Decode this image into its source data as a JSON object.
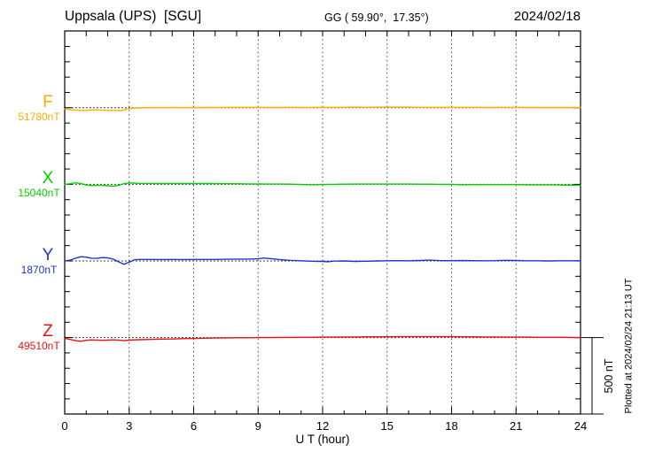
{
  "header": {
    "station": "Uppsala (UPS)  [SGU]",
    "coordinates": "GG ( 59.90°,  17.35°)",
    "date": "2024/02/18"
  },
  "xaxis": {
    "label": "U T (hour)"
  },
  "scale_bar": {
    "label": "500 nT",
    "span_nT": 500
  },
  "plotted_note": "Plotted at 2024/02/24 21:13 UT",
  "chart_data": {
    "type": "line",
    "title": "Uppsala (UPS) [SGU] magnetogram 2024/02/18",
    "xlabel": "U T (hour)",
    "x_range": [
      0,
      24
    ],
    "x_major_ticks": [
      0,
      3,
      6,
      9,
      12,
      15,
      18,
      21,
      24
    ],
    "x_minor_tick_step_hours": 1,
    "row_span_nT": 500,
    "y_minor_tick_nT": 100,
    "grid": "dotted vertical lines at 3-hour intervals; dotted horizontal baseline per component",
    "legend_position": "left margin (component letter and baseline value)",
    "series": [
      {
        "name": "F",
        "baseline_nT": 51780,
        "baseline_label": "51780nT",
        "color": "#FFAD00",
        "points_hour_offset_nT": [
          [
            0,
            -8
          ],
          [
            0.3,
            -14
          ],
          [
            0.6,
            -16
          ],
          [
            0.9,
            -18
          ],
          [
            1.2,
            -15
          ],
          [
            1.5,
            -14
          ],
          [
            1.8,
            -16
          ],
          [
            2.1,
            -18
          ],
          [
            2.4,
            -16
          ],
          [
            2.6,
            -20
          ],
          [
            2.8,
            -12
          ],
          [
            3,
            -5
          ],
          [
            3.3,
            -2
          ],
          [
            3.6,
            0
          ],
          [
            4,
            1
          ],
          [
            4.5,
            1
          ],
          [
            5,
            2
          ],
          [
            5.5,
            1
          ],
          [
            6,
            2
          ],
          [
            6.5,
            2
          ],
          [
            7,
            2
          ],
          [
            7.5,
            3
          ],
          [
            8,
            3
          ],
          [
            8.5,
            3
          ],
          [
            9,
            3
          ],
          [
            9.5,
            2
          ],
          [
            10,
            2
          ],
          [
            10.5,
            3
          ],
          [
            11,
            2
          ],
          [
            11.5,
            3
          ],
          [
            12,
            3
          ],
          [
            12.5,
            3
          ],
          [
            13,
            3
          ],
          [
            13.5,
            4
          ],
          [
            14,
            3
          ],
          [
            14.5,
            4
          ],
          [
            15,
            4
          ],
          [
            15.5,
            4
          ],
          [
            16,
            4
          ],
          [
            16.5,
            3
          ],
          [
            17,
            3
          ],
          [
            17.5,
            3
          ],
          [
            18,
            3
          ],
          [
            18.5,
            3
          ],
          [
            19,
            3
          ],
          [
            19.5,
            2
          ],
          [
            20,
            2
          ],
          [
            20.5,
            3
          ],
          [
            21,
            3
          ],
          [
            21.5,
            2
          ],
          [
            22,
            2
          ],
          [
            22.5,
            2
          ],
          [
            23,
            2
          ],
          [
            23.5,
            2
          ],
          [
            24,
            2
          ]
        ]
      },
      {
        "name": "X",
        "baseline_nT": 15040,
        "baseline_label": "15040nT",
        "color": "#00D000",
        "points_hour_offset_nT": [
          [
            0,
            0
          ],
          [
            0.25,
            4
          ],
          [
            0.5,
            10
          ],
          [
            0.75,
            6
          ],
          [
            1,
            -4
          ],
          [
            1.25,
            -8
          ],
          [
            1.5,
            -6
          ],
          [
            1.75,
            -7
          ],
          [
            2,
            -9
          ],
          [
            2.25,
            -12
          ],
          [
            2.5,
            -6
          ],
          [
            2.75,
            4
          ],
          [
            3,
            9
          ],
          [
            3.25,
            8
          ],
          [
            3.5,
            6
          ],
          [
            4,
            6
          ],
          [
            4.5,
            5
          ],
          [
            5,
            6
          ],
          [
            5.5,
            5
          ],
          [
            6,
            6
          ],
          [
            6.5,
            5
          ],
          [
            7,
            5
          ],
          [
            7.5,
            4
          ],
          [
            8,
            4
          ],
          [
            8.5,
            3
          ],
          [
            9,
            3
          ],
          [
            9.5,
            2
          ],
          [
            10,
            2
          ],
          [
            10.5,
            1
          ],
          [
            11,
            -1
          ],
          [
            11.5,
            -3
          ],
          [
            12,
            -1
          ],
          [
            12.5,
            0
          ],
          [
            13,
            1
          ],
          [
            13.5,
            2
          ],
          [
            14,
            2
          ],
          [
            14.5,
            2
          ],
          [
            15,
            2
          ],
          [
            15.5,
            2
          ],
          [
            16,
            2
          ],
          [
            16.5,
            1
          ],
          [
            17,
            1
          ],
          [
            17.5,
            0
          ],
          [
            18,
            0
          ],
          [
            18.5,
            -3
          ],
          [
            19,
            -2
          ],
          [
            19.5,
            -2
          ],
          [
            20,
            -2
          ],
          [
            20.5,
            -2
          ],
          [
            21,
            -2
          ],
          [
            21.5,
            -3
          ],
          [
            22,
            -3
          ],
          [
            22.5,
            -3
          ],
          [
            23,
            -4
          ],
          [
            23.5,
            -5
          ],
          [
            24,
            -6
          ]
        ]
      },
      {
        "name": "Y",
        "baseline_nT": 1870,
        "baseline_label": "1870nT",
        "color": "#2233CC",
        "points_hour_offset_nT": [
          [
            0,
            0
          ],
          [
            0.25,
            5
          ],
          [
            0.5,
            18
          ],
          [
            0.75,
            28
          ],
          [
            1,
            25
          ],
          [
            1.25,
            18
          ],
          [
            1.5,
            17
          ],
          [
            1.75,
            22
          ],
          [
            2,
            20
          ],
          [
            2.25,
            12
          ],
          [
            2.5,
            -5
          ],
          [
            2.75,
            -22
          ],
          [
            3,
            -8
          ],
          [
            3.25,
            8
          ],
          [
            3.5,
            10
          ],
          [
            4,
            10
          ],
          [
            4.5,
            9
          ],
          [
            5,
            10
          ],
          [
            5.5,
            9
          ],
          [
            6,
            10
          ],
          [
            6.5,
            10
          ],
          [
            7,
            10
          ],
          [
            7.5,
            11
          ],
          [
            8,
            12
          ],
          [
            8.5,
            12
          ],
          [
            9,
            14
          ],
          [
            9.25,
            19
          ],
          [
            9.5,
            16
          ],
          [
            10,
            9
          ],
          [
            10.5,
            4
          ],
          [
            11,
            1
          ],
          [
            11.5,
            -2
          ],
          [
            12,
            -3
          ],
          [
            12.25,
            -5
          ],
          [
            12.5,
            -1
          ],
          [
            13,
            0
          ],
          [
            13.5,
            -3
          ],
          [
            14,
            -2
          ],
          [
            14.5,
            0
          ],
          [
            15,
            1
          ],
          [
            15.5,
            2
          ],
          [
            16,
            1
          ],
          [
            16.5,
            3
          ],
          [
            17,
            5
          ],
          [
            17.5,
            2
          ],
          [
            18,
            2
          ],
          [
            18.5,
            3
          ],
          [
            19,
            2
          ],
          [
            19.5,
            1
          ],
          [
            20,
            2
          ],
          [
            20.5,
            4
          ],
          [
            21,
            3
          ],
          [
            21.5,
            1
          ],
          [
            22,
            1
          ],
          [
            22.5,
            0
          ],
          [
            23,
            1
          ],
          [
            23.5,
            1
          ],
          [
            24,
            2
          ]
        ]
      },
      {
        "name": "Z",
        "baseline_nT": 49510,
        "baseline_label": "49510nT",
        "color": "#E81010",
        "points_hour_offset_nT": [
          [
            0,
            -6
          ],
          [
            0.25,
            -12
          ],
          [
            0.5,
            -20
          ],
          [
            0.75,
            -24
          ],
          [
            1,
            -18
          ],
          [
            1.25,
            -15
          ],
          [
            1.5,
            -16
          ],
          [
            1.75,
            -18
          ],
          [
            2,
            -17
          ],
          [
            2.25,
            -15
          ],
          [
            2.5,
            -16
          ],
          [
            2.75,
            -20
          ],
          [
            3,
            -17
          ],
          [
            3.25,
            -15
          ],
          [
            3.5,
            -14
          ],
          [
            4,
            -12
          ],
          [
            4.5,
            -10
          ],
          [
            5,
            -9
          ],
          [
            5.5,
            -7
          ],
          [
            6,
            -6
          ],
          [
            6.5,
            -4
          ],
          [
            7,
            -3
          ],
          [
            7.5,
            -2
          ],
          [
            8,
            -1
          ],
          [
            8.5,
            -1
          ],
          [
            9,
            0
          ],
          [
            9.5,
            0
          ],
          [
            10,
            1
          ],
          [
            10.5,
            1
          ],
          [
            11,
            2
          ],
          [
            11.5,
            2
          ],
          [
            12,
            3
          ],
          [
            12.5,
            3
          ],
          [
            13,
            4
          ],
          [
            13.5,
            4
          ],
          [
            14,
            5
          ],
          [
            14.5,
            5
          ],
          [
            15,
            5
          ],
          [
            15.5,
            6
          ],
          [
            16,
            6
          ],
          [
            16.5,
            6
          ],
          [
            17,
            6
          ],
          [
            17.5,
            6
          ],
          [
            18,
            6
          ],
          [
            18.5,
            5
          ],
          [
            19,
            5
          ],
          [
            19.5,
            4
          ],
          [
            20,
            4
          ],
          [
            20.5,
            3
          ],
          [
            21,
            3
          ],
          [
            21.5,
            3
          ],
          [
            22,
            2
          ],
          [
            22.5,
            2
          ],
          [
            23,
            2
          ],
          [
            23.5,
            1
          ],
          [
            24,
            0
          ]
        ]
      }
    ]
  }
}
